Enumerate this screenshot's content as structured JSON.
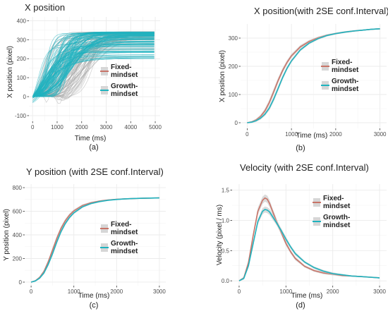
{
  "colors": {
    "fixed": "#c87468",
    "growth": "#1fb3bf",
    "grid": "#ebebeb",
    "band": "#bdbdbd",
    "gray_traj": "#a9a9a9",
    "text": "#222222",
    "tick": "#4d4d4d"
  },
  "chart_data": [
    {
      "id": "a",
      "panel_label": "(a)",
      "type": "line",
      "title": "X position",
      "xlabel": "Time (ms)",
      "ylabel": "X position (pixel)",
      "xlim": [
        -150,
        5200
      ],
      "ylim": [
        -130,
        420
      ],
      "xticks": [
        0,
        1000,
        2000,
        3000,
        4000,
        5000
      ],
      "yticks": [
        -100,
        0,
        100,
        200,
        300,
        400
      ],
      "xtick_labels": [
        "0",
        "1000",
        "2000",
        "3000",
        "4000",
        "5000"
      ],
      "ytick_labels": [
        "-100",
        "0",
        "100",
        "200",
        "300",
        "400"
      ],
      "grid": true,
      "legend_position": "right",
      "series": [
        {
          "name": "Fixed-\nmindset",
          "display": "individual trajectories",
          "color_key": "gray_traj"
        },
        {
          "name": "Growth-\nmindset",
          "display": "individual trajectories",
          "color_key": "growth"
        }
      ],
      "final_value_approx": 338
    },
    {
      "id": "b",
      "panel_label": "(b)",
      "type": "line",
      "title": "X position(with 2SE conf.Interval)",
      "xlabel": "Time (ms)",
      "ylabel": "X position (pixel)",
      "xlim": [
        -150,
        3150
      ],
      "ylim": [
        -20,
        350
      ],
      "xticks": [
        0,
        1000,
        2000,
        3000
      ],
      "yticks": [
        0,
        100,
        200,
        300
      ],
      "xtick_labels": [
        "0",
        "1000",
        "2000",
        "3000"
      ],
      "ytick_labels": [
        "0",
        "100",
        "200",
        "300"
      ],
      "grid": true,
      "legend_position": "right",
      "series": [
        {
          "name": "Fixed-\nmindset",
          "color_key": "fixed",
          "x": [
            0,
            100,
            200,
            300,
            400,
            500,
            600,
            700,
            800,
            900,
            1000,
            1200,
            1400,
            1600,
            1800,
            2000,
            2200,
            2400,
            2600,
            2800,
            3000
          ],
          "y": [
            0,
            3,
            10,
            22,
            42,
            72,
            110,
            150,
            185,
            214,
            237,
            269,
            288,
            301,
            310,
            316,
            321,
            325,
            328,
            331,
            333
          ],
          "se2": [
            2,
            3,
            4,
            6,
            8,
            10,
            11,
            10,
            9,
            8,
            7,
            6,
            5,
            4,
            4,
            3,
            3,
            3,
            2,
            2,
            2
          ]
        },
        {
          "name": "Growth-\nmindset",
          "color_key": "growth",
          "x": [
            0,
            100,
            200,
            300,
            400,
            500,
            600,
            700,
            800,
            900,
            1000,
            1200,
            1400,
            1600,
            1800,
            2000,
            2200,
            2400,
            2600,
            2800,
            3000
          ],
          "y": [
            0,
            2,
            7,
            16,
            30,
            52,
            84,
            122,
            160,
            193,
            219,
            258,
            282,
            298,
            309,
            316,
            321,
            325,
            328,
            331,
            333
          ],
          "se2": [
            2,
            3,
            4,
            5,
            6,
            8,
            9,
            9,
            8,
            7,
            6,
            5,
            4,
            4,
            3,
            3,
            3,
            2,
            2,
            2,
            2
          ]
        }
      ]
    },
    {
      "id": "c",
      "panel_label": "(c)",
      "type": "line",
      "title": "Y position (with 2SE conf.Interval)",
      "xlabel": "Time (ms)",
      "ylabel": "Y position (pixel)",
      "xlim": [
        -150,
        3150
      ],
      "ylim": [
        -30,
        830
      ],
      "xticks": [
        0,
        1000,
        2000,
        3000
      ],
      "yticks": [
        0,
        200,
        400,
        600,
        800
      ],
      "xtick_labels": [
        "0",
        "1000",
        "2000",
        "3000"
      ],
      "ytick_labels": [
        "0",
        "200",
        "400",
        "600",
        "800"
      ],
      "grid": true,
      "legend_position": "right",
      "series": [
        {
          "name": "Fixed-\nmindset",
          "color_key": "fixed",
          "x": [
            0,
            100,
            200,
            300,
            400,
            500,
            600,
            700,
            800,
            900,
            1000,
            1200,
            1400,
            1600,
            1800,
            2000,
            2200,
            2400,
            2600,
            2800,
            3000
          ],
          "y": [
            0,
            12,
            40,
            90,
            170,
            270,
            370,
            455,
            520,
            568,
            603,
            648,
            672,
            686,
            695,
            701,
            705,
            708,
            710,
            712,
            713
          ],
          "se2": [
            4,
            6,
            10,
            14,
            18,
            20,
            20,
            18,
            16,
            14,
            12,
            10,
            8,
            6,
            5,
            5,
            4,
            4,
            4,
            3,
            3
          ]
        },
        {
          "name": "Growth-\nmindset",
          "color_key": "growth",
          "x": [
            0,
            100,
            200,
            300,
            400,
            500,
            600,
            700,
            800,
            900,
            1000,
            1200,
            1400,
            1600,
            1800,
            2000,
            2200,
            2400,
            2600,
            2800,
            3000
          ],
          "y": [
            0,
            10,
            34,
            78,
            150,
            240,
            340,
            428,
            497,
            548,
            587,
            637,
            665,
            682,
            693,
            700,
            705,
            708,
            710,
            712,
            713
          ],
          "se2": [
            4,
            6,
            9,
            12,
            15,
            18,
            18,
            16,
            14,
            12,
            11,
            9,
            7,
            6,
            5,
            4,
            4,
            4,
            3,
            3,
            3
          ]
        }
      ]
    },
    {
      "id": "d",
      "panel_label": "(d)",
      "type": "line",
      "title": "Velocity (with 2SE conf.Interval)",
      "xlabel": "Time (ms)",
      "ylabel": "Velocity (pixel / ms)",
      "xlim": [
        -150,
        3150
      ],
      "ylim": [
        -0.08,
        1.6
      ],
      "xticks": [
        0,
        1000,
        2000,
        3000
      ],
      "yticks": [
        0.0,
        0.5,
        1.0,
        1.5
      ],
      "xtick_labels": [
        "0",
        "1000",
        "2000",
        "3000"
      ],
      "ytick_labels": [
        "0.0",
        "0.5",
        "1.0",
        "1.5"
      ],
      "grid": true,
      "legend_position": "right",
      "series": [
        {
          "name": "Fixed-\nmindset",
          "color_key": "fixed",
          "x": [
            0,
            100,
            200,
            300,
            400,
            500,
            550,
            600,
            650,
            700,
            800,
            900,
            1000,
            1100,
            1200,
            1400,
            1600,
            1800,
            2000,
            2200,
            2400,
            2600,
            2800,
            3000
          ],
          "y": [
            0,
            0.05,
            0.3,
            0.75,
            1.15,
            1.33,
            1.37,
            1.35,
            1.28,
            1.18,
            0.98,
            0.8,
            0.62,
            0.48,
            0.37,
            0.24,
            0.17,
            0.13,
            0.11,
            0.09,
            0.08,
            0.07,
            0.06,
            0.05
          ],
          "se2": [
            0.01,
            0.02,
            0.04,
            0.05,
            0.06,
            0.06,
            0.06,
            0.06,
            0.06,
            0.05,
            0.05,
            0.04,
            0.04,
            0.03,
            0.03,
            0.02,
            0.02,
            0.02,
            0.02,
            0.02,
            0.01,
            0.01,
            0.01,
            0.01
          ]
        },
        {
          "name": "Growth-\nmindset",
          "color_key": "growth",
          "x": [
            0,
            100,
            200,
            300,
            400,
            500,
            550,
            600,
            650,
            700,
            800,
            900,
            1000,
            1100,
            1200,
            1400,
            1600,
            1800,
            2000,
            2200,
            2400,
            2600,
            2800,
            3000
          ],
          "y": [
            0,
            0.04,
            0.25,
            0.62,
            0.98,
            1.15,
            1.18,
            1.17,
            1.14,
            1.08,
            0.96,
            0.83,
            0.69,
            0.56,
            0.45,
            0.31,
            0.22,
            0.16,
            0.12,
            0.1,
            0.08,
            0.07,
            0.06,
            0.05
          ],
          "se2": [
            0.01,
            0.02,
            0.03,
            0.05,
            0.05,
            0.05,
            0.05,
            0.05,
            0.05,
            0.05,
            0.04,
            0.04,
            0.04,
            0.03,
            0.03,
            0.02,
            0.02,
            0.02,
            0.02,
            0.01,
            0.01,
            0.01,
            0.01,
            0.01
          ]
        }
      ]
    }
  ]
}
